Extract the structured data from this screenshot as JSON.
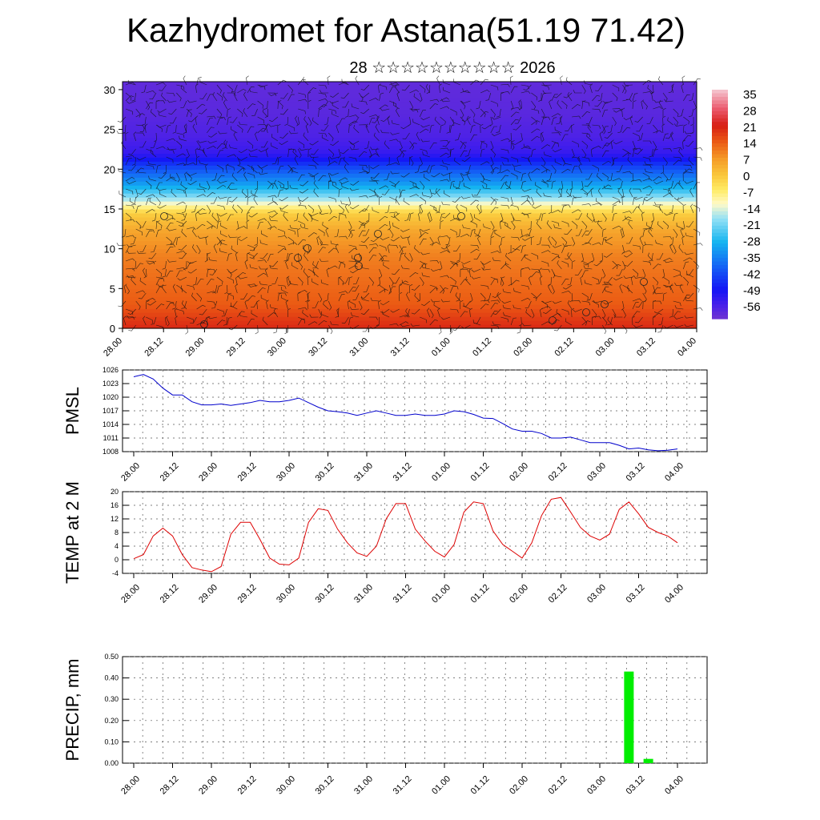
{
  "page": {
    "title": "Kazhydromet for Astana(51.19 71.42)",
    "subtitle": "28 ☆☆☆☆☆☆☆☆☆☆ 2026"
  },
  "chart_data": [
    {
      "type": "heatmap",
      "title": "",
      "xlabel": "",
      "ylabel": "",
      "x_tick_labels": [
        "28.00",
        "28.12",
        "29.00",
        "29.12",
        "30.00",
        "30.12",
        "31.00",
        "31.12",
        "01.00",
        "01.12",
        "02.00",
        "02.12",
        "03.00",
        "03.12",
        "04.00"
      ],
      "y_tick_labels": [
        "0",
        "5",
        "10",
        "15",
        "20",
        "25",
        "30"
      ],
      "ylim": [
        0,
        31
      ],
      "overlay": "wind barbs",
      "colorbar_labels": [
        "35",
        "28",
        "21",
        "14",
        "7",
        "0",
        "-7",
        "-14",
        "-21",
        "-28",
        "-35",
        "-42",
        "-49",
        "-56"
      ],
      "colorbar_range": [
        -60,
        36
      ],
      "temperature_profile": {
        "levels": [
          0,
          3,
          6,
          9,
          12,
          14.5,
          16,
          18,
          20,
          22,
          24,
          27,
          31
        ],
        "values": [
          20,
          14,
          12,
          10,
          6,
          -1,
          -15,
          -30,
          -40,
          -52,
          -55,
          -57,
          -58
        ]
      }
    },
    {
      "type": "line",
      "ylabel": "PMSL",
      "ylim": [
        1008,
        1026
      ],
      "y_tick_labels": [
        "1008",
        "1011",
        "1014",
        "1017",
        "1020",
        "1023",
        "1026"
      ],
      "x_tick_labels": [
        "28.00",
        "28.12",
        "29.00",
        "29.12",
        "30.00",
        "30.12",
        "31.00",
        "31.12",
        "01.00",
        "01.12",
        "02.00",
        "02.12",
        "03.00",
        "03.12",
        "04.00"
      ],
      "series": [
        {
          "name": "PMSL",
          "color": "#0000cc",
          "values": [
            1024.5,
            1025,
            1024,
            1022,
            1020.5,
            1020.5,
            1019,
            1018.3,
            1018.3,
            1018.5,
            1018.2,
            1018.5,
            1018.8,
            1019.3,
            1019,
            1019,
            1019.3,
            1019.8,
            1018.8,
            1017.8,
            1017,
            1016.8,
            1016.5,
            1016,
            1016.5,
            1017,
            1016.5,
            1016,
            1016,
            1016.3,
            1016,
            1016,
            1016.3,
            1017,
            1016.8,
            1016.2,
            1015.4,
            1015.3,
            1014.2,
            1013,
            1012.5,
            1012.5,
            1012,
            1011,
            1011,
            1011.2,
            1010.6,
            1010,
            1010,
            1010,
            1009.4,
            1008.6,
            1008.8,
            1008.4,
            1008.2,
            1008.3,
            1008.6
          ]
        }
      ]
    },
    {
      "type": "line",
      "ylabel": "TEMP at 2 M",
      "ylim": [
        -4,
        20
      ],
      "y_tick_labels": [
        "-4",
        "0",
        "4",
        "8",
        "12",
        "16",
        "20"
      ],
      "x_tick_labels": [
        "28.00",
        "28.12",
        "29.00",
        "29.12",
        "30.00",
        "30.12",
        "31.00",
        "31.12",
        "01.00",
        "01.12",
        "02.00",
        "02.12",
        "03.00",
        "03.12",
        "04.00"
      ],
      "series": [
        {
          "name": "TEMP at 2 M",
          "color": "#dd0000",
          "values": [
            0.3,
            1.5,
            7,
            9.3,
            7,
            1.5,
            -2.3,
            -3,
            -3.5,
            -2,
            7.5,
            11,
            11,
            6,
            0.5,
            -1.3,
            -1.5,
            0.5,
            11,
            15,
            14.5,
            9,
            5,
            2,
            1,
            4,
            12,
            16.5,
            16.5,
            9,
            5.5,
            2.5,
            0.8,
            4.5,
            14,
            17,
            16.5,
            8.5,
            4.5,
            2.5,
            0.5,
            5,
            13,
            17.8,
            18.3,
            14,
            9.5,
            7,
            5.8,
            7.5,
            14.8,
            17,
            13.5,
            9.5,
            8,
            7,
            5
          ]
        }
      ]
    },
    {
      "type": "bar",
      "ylabel": "PRECIP, mm",
      "ylim": [
        0,
        0.5
      ],
      "y_tick_labels": [
        "0.00",
        "0.10",
        "0.20",
        "0.30",
        "0.40",
        "0.50"
      ],
      "x_tick_labels": [
        "28.00",
        "28.12",
        "29.00",
        "29.12",
        "30.00",
        "30.12",
        "31.00",
        "31.12",
        "01.00",
        "01.12",
        "02.00",
        "02.12",
        "03.00",
        "03.12",
        "04.00"
      ],
      "bar_color": "#00ee00",
      "bars": [
        {
          "step": 51,
          "value": 0.43
        },
        {
          "step": 53,
          "value": 0.02
        }
      ]
    }
  ]
}
